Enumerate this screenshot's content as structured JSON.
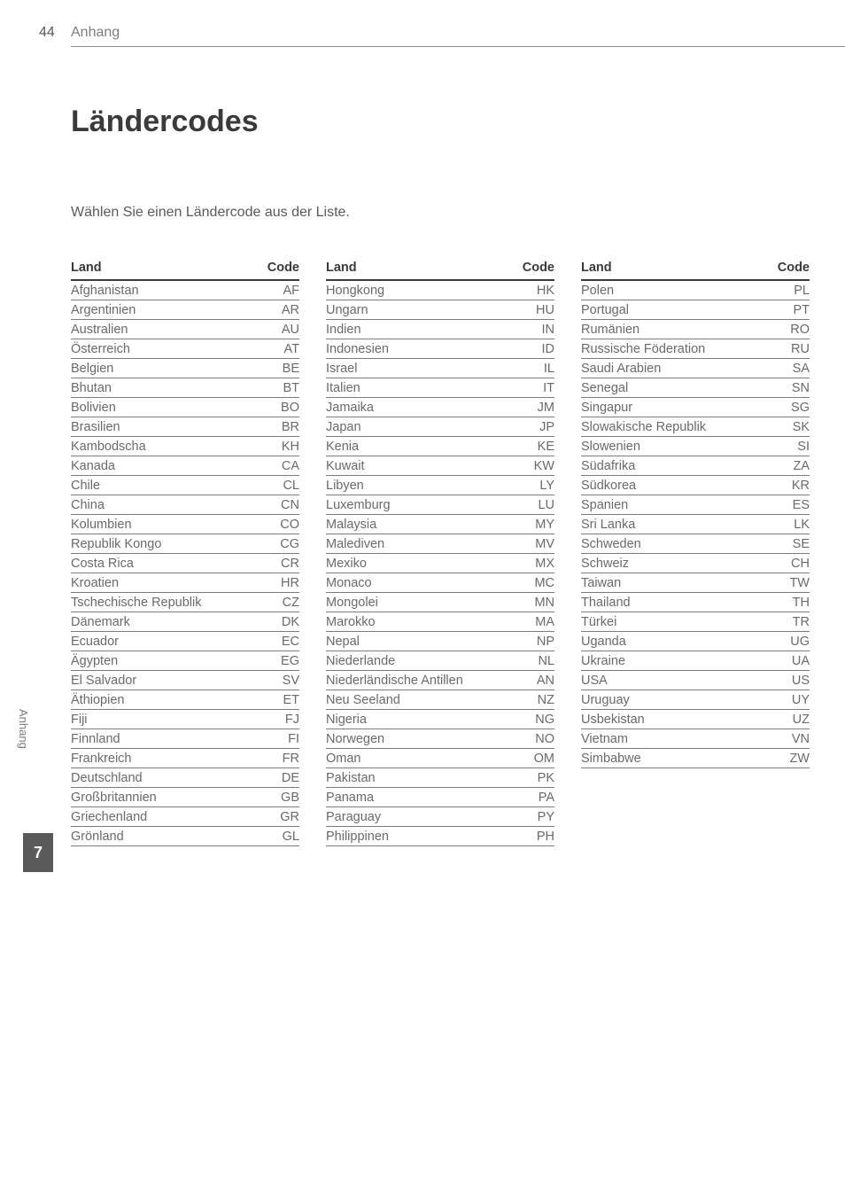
{
  "page_number": "44",
  "section_name": "Anhang",
  "chapter_number": "7",
  "title": "Ländercodes",
  "intro": "Wählen Sie einen Ländercode aus der Liste.",
  "header_land": "Land",
  "header_code": "Code",
  "columns": [
    [
      {
        "land": "Afghanistan",
        "code": "AF"
      },
      {
        "land": "Argentinien",
        "code": "AR"
      },
      {
        "land": "Australien",
        "code": "AU"
      },
      {
        "land": "Österreich",
        "code": "AT"
      },
      {
        "land": "Belgien",
        "code": "BE"
      },
      {
        "land": "Bhutan",
        "code": "BT"
      },
      {
        "land": "Bolivien",
        "code": "BO"
      },
      {
        "land": "Brasilien",
        "code": "BR"
      },
      {
        "land": "Kambodscha",
        "code": "KH"
      },
      {
        "land": "Kanada",
        "code": "CA"
      },
      {
        "land": "Chile",
        "code": "CL"
      },
      {
        "land": "China",
        "code": "CN"
      },
      {
        "land": "Kolumbien",
        "code": "CO"
      },
      {
        "land": "Republik Kongo",
        "code": "CG"
      },
      {
        "land": "Costa Rica",
        "code": "CR"
      },
      {
        "land": "Kroatien",
        "code": "HR"
      },
      {
        "land": "Tschechische Republik",
        "code": "CZ"
      },
      {
        "land": "Dänemark",
        "code": "DK"
      },
      {
        "land": "Ecuador",
        "code": "EC"
      },
      {
        "land": "Ägypten",
        "code": "EG"
      },
      {
        "land": "El Salvador",
        "code": "SV"
      },
      {
        "land": "Äthiopien",
        "code": "ET"
      },
      {
        "land": "Fiji",
        "code": "FJ"
      },
      {
        "land": "Finnland",
        "code": "FI"
      },
      {
        "land": "Frankreich",
        "code": "FR"
      },
      {
        "land": "Deutschland",
        "code": "DE"
      },
      {
        "land": "Großbritannien",
        "code": "GB"
      },
      {
        "land": "Griechenland",
        "code": "GR"
      },
      {
        "land": "Grönland",
        "code": "GL"
      }
    ],
    [
      {
        "land": "Hongkong",
        "code": "HK"
      },
      {
        "land": "Ungarn",
        "code": "HU"
      },
      {
        "land": "Indien",
        "code": "IN"
      },
      {
        "land": "Indonesien",
        "code": "ID"
      },
      {
        "land": "Israel",
        "code": "IL"
      },
      {
        "land": "Italien",
        "code": "IT"
      },
      {
        "land": "Jamaika",
        "code": "JM"
      },
      {
        "land": "Japan",
        "code": "JP"
      },
      {
        "land": "Kenia",
        "code": "KE"
      },
      {
        "land": "Kuwait",
        "code": "KW"
      },
      {
        "land": "Libyen",
        "code": "LY"
      },
      {
        "land": "Luxemburg",
        "code": "LU"
      },
      {
        "land": "Malaysia",
        "code": "MY"
      },
      {
        "land": "Malediven",
        "code": "MV"
      },
      {
        "land": "Mexiko",
        "code": "MX"
      },
      {
        "land": "Monaco",
        "code": "MC"
      },
      {
        "land": "Mongolei",
        "code": "MN"
      },
      {
        "land": "Marokko",
        "code": "MA"
      },
      {
        "land": "Nepal",
        "code": "NP"
      },
      {
        "land": "Niederlande",
        "code": "NL"
      },
      {
        "land": "Niederländische Antillen",
        "code": "AN"
      },
      {
        "land": "Neu Seeland",
        "code": "NZ"
      },
      {
        "land": "Nigeria",
        "code": "NG"
      },
      {
        "land": "Norwegen",
        "code": "NO"
      },
      {
        "land": "Oman",
        "code": "OM"
      },
      {
        "land": "Pakistan",
        "code": "PK"
      },
      {
        "land": "Panama",
        "code": "PA"
      },
      {
        "land": "Paraguay",
        "code": "PY"
      },
      {
        "land": "Philippinen",
        "code": "PH"
      }
    ],
    [
      {
        "land": "Polen",
        "code": "PL"
      },
      {
        "land": "Portugal",
        "code": "PT"
      },
      {
        "land": "Rumänien",
        "code": "RO"
      },
      {
        "land": "Russische Föderation",
        "code": "RU"
      },
      {
        "land": "Saudi Arabien",
        "code": "SA"
      },
      {
        "land": "Senegal",
        "code": "SN"
      },
      {
        "land": "Singapur",
        "code": "SG"
      },
      {
        "land": "Slowakische Republik",
        "code": "SK"
      },
      {
        "land": "Slowenien",
        "code": "SI"
      },
      {
        "land": "Südafrika",
        "code": "ZA"
      },
      {
        "land": "Südkorea",
        "code": "KR"
      },
      {
        "land": "Spanien",
        "code": "ES"
      },
      {
        "land": "Sri Lanka",
        "code": "LK"
      },
      {
        "land": "Schweden",
        "code": "SE"
      },
      {
        "land": "Schweiz",
        "code": "CH"
      },
      {
        "land": "Taiwan",
        "code": "TW"
      },
      {
        "land": "Thailand",
        "code": "TH"
      },
      {
        "land": "Türkei",
        "code": "TR"
      },
      {
        "land": "Uganda",
        "code": "UG"
      },
      {
        "land": "Ukraine",
        "code": "UA"
      },
      {
        "land": "USA",
        "code": "US"
      },
      {
        "land": "Uruguay",
        "code": "UY"
      },
      {
        "land": "Usbekistan",
        "code": "UZ"
      },
      {
        "land": "Vietnam",
        "code": "VN"
      },
      {
        "land": "Simbabwe",
        "code": "ZW"
      }
    ]
  ]
}
